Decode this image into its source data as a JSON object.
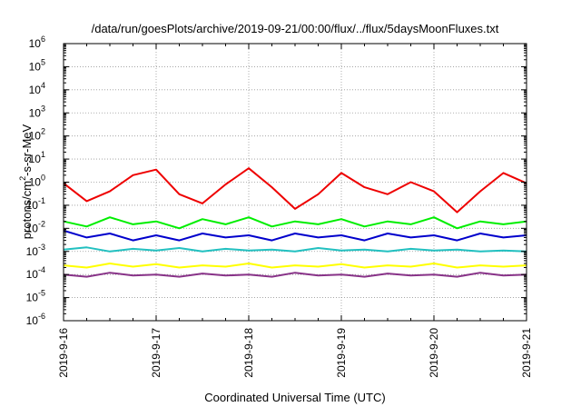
{
  "chart_data": {
    "type": "line",
    "title": "/data/run/goesPlots/archive/2019-09-21/00:00/flux/../flux/5daysMoonFluxes.txt",
    "xlabel": "Coordinated Universal Time (UTC)",
    "ylabel": "protons/cm²-s-sr-MeV",
    "ylabel_parts": {
      "pre": "protons/cm",
      "sup": "2",
      "post": "-s-sr-MeV"
    },
    "yscale": "log",
    "ylim": [
      1e-06,
      1000000.0
    ],
    "xlim": [
      "2019-09-16",
      "2019-09-21"
    ],
    "grid": true,
    "x_ticks": [
      "2019-9-16",
      "2019-9-17",
      "2019-9-18",
      "2019-9-19",
      "2019-9-20",
      "2019-9-21"
    ],
    "y_ticks": [
      {
        "base": "10",
        "exp": "-6"
      },
      {
        "base": "10",
        "exp": "-5"
      },
      {
        "base": "10",
        "exp": "-4"
      },
      {
        "base": "10",
        "exp": "-3"
      },
      {
        "base": "10",
        "exp": "-2"
      },
      {
        "base": "10",
        "exp": "-1"
      },
      {
        "base": "10",
        "exp": "0"
      },
      {
        "base": "10",
        "exp": "1"
      },
      {
        "base": "10",
        "exp": "2"
      },
      {
        "base": "10",
        "exp": "3"
      },
      {
        "base": "10",
        "exp": "4"
      },
      {
        "base": "10",
        "exp": "5"
      },
      {
        "base": "10",
        "exp": "6"
      }
    ],
    "series": [
      {
        "color": "#ee0000",
        "x": [
          "2019-09-16",
          "2019-09-16T06:00",
          "2019-09-16T12:00",
          "2019-09-16T18:00",
          "2019-09-17",
          "2019-09-17T06:00",
          "2019-09-17T12:00",
          "2019-09-17T18:00",
          "2019-09-18",
          "2019-09-18T06:00",
          "2019-09-18T12:00",
          "2019-09-18T18:00",
          "2019-09-19",
          "2019-09-19T06:00",
          "2019-09-19T12:00",
          "2019-09-19T18:00",
          "2019-09-20",
          "2019-09-20T06:00",
          "2019-09-20T12:00",
          "2019-09-20T18:00",
          "2019-09-21"
        ],
        "y": [
          0.9,
          0.15,
          0.4,
          2.0,
          3.5,
          0.3,
          0.12,
          0.8,
          4.0,
          0.6,
          0.07,
          0.3,
          2.5,
          0.6,
          0.3,
          1.0,
          0.4,
          0.05,
          0.4,
          2.5,
          0.9
        ]
      },
      {
        "color": "#00ee00",
        "x": [
          "2019-09-16",
          "2019-09-16T06:00",
          "2019-09-16T12:00",
          "2019-09-16T18:00",
          "2019-09-17",
          "2019-09-17T06:00",
          "2019-09-17T12:00",
          "2019-09-17T18:00",
          "2019-09-18",
          "2019-09-18T06:00",
          "2019-09-18T12:00",
          "2019-09-18T18:00",
          "2019-09-19",
          "2019-09-19T06:00",
          "2019-09-19T12:00",
          "2019-09-19T18:00",
          "2019-09-20",
          "2019-09-20T06:00",
          "2019-09-20T12:00",
          "2019-09-20T18:00",
          "2019-09-21"
        ],
        "y": [
          0.02,
          0.012,
          0.03,
          0.015,
          0.02,
          0.01,
          0.025,
          0.015,
          0.03,
          0.012,
          0.02,
          0.015,
          0.025,
          0.012,
          0.02,
          0.015,
          0.03,
          0.01,
          0.02,
          0.015,
          0.02
        ]
      },
      {
        "color": "#0000cc",
        "x": [
          "2019-09-16",
          "2019-09-16T06:00",
          "2019-09-16T12:00",
          "2019-09-16T18:00",
          "2019-09-17",
          "2019-09-17T06:00",
          "2019-09-17T12:00",
          "2019-09-17T18:00",
          "2019-09-18",
          "2019-09-18T06:00",
          "2019-09-18T12:00",
          "2019-09-18T18:00",
          "2019-09-19",
          "2019-09-19T06:00",
          "2019-09-19T12:00",
          "2019-09-19T18:00",
          "2019-09-20",
          "2019-09-20T06:00",
          "2019-09-20T12:00",
          "2019-09-20T18:00",
          "2019-09-21"
        ],
        "y": [
          0.008,
          0.004,
          0.006,
          0.003,
          0.005,
          0.003,
          0.006,
          0.004,
          0.005,
          0.003,
          0.006,
          0.004,
          0.005,
          0.003,
          0.006,
          0.004,
          0.005,
          0.003,
          0.006,
          0.004,
          0.005
        ]
      },
      {
        "color": "#22c0c0",
        "x": [
          "2019-09-16",
          "2019-09-16T06:00",
          "2019-09-16T12:00",
          "2019-09-16T18:00",
          "2019-09-17",
          "2019-09-17T06:00",
          "2019-09-17T12:00",
          "2019-09-17T18:00",
          "2019-09-18",
          "2019-09-18T06:00",
          "2019-09-18T12:00",
          "2019-09-18T18:00",
          "2019-09-19",
          "2019-09-19T06:00",
          "2019-09-19T12:00",
          "2019-09-19T18:00",
          "2019-09-20",
          "2019-09-20T06:00",
          "2019-09-20T12:00",
          "2019-09-20T18:00",
          "2019-09-21"
        ],
        "y": [
          0.0012,
          0.0015,
          0.001,
          0.0013,
          0.0011,
          0.0014,
          0.001,
          0.0013,
          0.0011,
          0.0012,
          0.001,
          0.0014,
          0.0011,
          0.0012,
          0.001,
          0.0013,
          0.0011,
          0.0012,
          0.001,
          0.0011,
          0.001
        ]
      },
      {
        "color": "#ffff00",
        "x": [
          "2019-09-16",
          "2019-09-16T06:00",
          "2019-09-16T12:00",
          "2019-09-16T18:00",
          "2019-09-17",
          "2019-09-17T06:00",
          "2019-09-17T12:00",
          "2019-09-17T18:00",
          "2019-09-18",
          "2019-09-18T06:00",
          "2019-09-18T12:00",
          "2019-09-18T18:00",
          "2019-09-19",
          "2019-09-19T06:00",
          "2019-09-19T12:00",
          "2019-09-19T18:00",
          "2019-09-20",
          "2019-09-20T06:00",
          "2019-09-20T12:00",
          "2019-09-20T18:00",
          "2019-09-21"
        ],
        "y": [
          0.00025,
          0.0002,
          0.0003,
          0.00022,
          0.00028,
          0.0002,
          0.00025,
          0.00022,
          0.0003,
          0.0002,
          0.00025,
          0.00022,
          0.00028,
          0.0002,
          0.00025,
          0.00022,
          0.0003,
          0.0002,
          0.00025,
          0.00022,
          0.00025
        ]
      },
      {
        "color": "#883388",
        "x": [
          "2019-09-16",
          "2019-09-16T06:00",
          "2019-09-16T12:00",
          "2019-09-16T18:00",
          "2019-09-17",
          "2019-09-17T06:00",
          "2019-09-17T12:00",
          "2019-09-17T18:00",
          "2019-09-18",
          "2019-09-18T06:00",
          "2019-09-18T12:00",
          "2019-09-18T18:00",
          "2019-09-19",
          "2019-09-19T06:00",
          "2019-09-19T12:00",
          "2019-09-19T18:00",
          "2019-09-20",
          "2019-09-20T06:00",
          "2019-09-20T12:00",
          "2019-09-20T18:00",
          "2019-09-21"
        ],
        "y": [
          0.0001,
          8e-05,
          0.00012,
          9e-05,
          0.0001,
          8e-05,
          0.00011,
          9e-05,
          0.0001,
          8e-05,
          0.00012,
          9e-05,
          0.0001,
          8e-05,
          0.00011,
          9e-05,
          0.0001,
          8e-05,
          0.00012,
          9e-05,
          0.0001
        ]
      }
    ]
  }
}
